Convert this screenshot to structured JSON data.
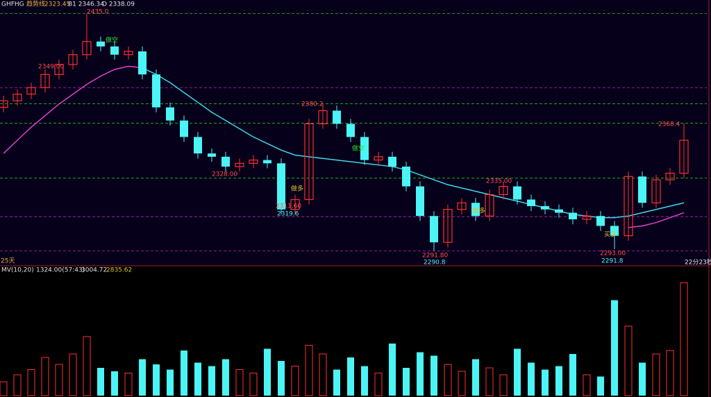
{
  "header": {
    "symbol": "GHFHG",
    "indicator": "趋势线",
    "price": "2323.45",
    "b1": "B1 2346.34",
    "d": "D 2338.09"
  },
  "annotations": {
    "high": "2435.0",
    "left_level": "2349.00",
    "peak2": "2380.2",
    "peak3": "2368.4",
    "level_mid": "2335.00",
    "level_left2": "2328.00",
    "low1": "2311.60",
    "low1b": "2319.6",
    "low2": "2291.80",
    "low2b": "2290.8",
    "low3": "2293.00",
    "low3b": "2291.8",
    "days": "25天",
    "timer": "22分23秒",
    "sig_short1": "做空",
    "sig_long1": "做多",
    "sig_short2": "做空",
    "sig_long2": "做多",
    "sig_buy": "买多"
  },
  "chart_data": {
    "type": "candlestick",
    "up_color": "#ff3030",
    "down_color": "#4cf5f5",
    "ylim": [
      2283,
      2439
    ],
    "open": [
      2378,
      2382,
      2386,
      2390,
      2398,
      2404,
      2410,
      2418,
      2415,
      2410,
      2412,
      2398,
      2378,
      2370,
      2360,
      2350,
      2348,
      2342,
      2344,
      2346,
      2344,
      2316,
      2322,
      2368,
      2376,
      2368,
      2360,
      2346,
      2348,
      2342,
      2330,
      2312,
      2296,
      2316,
      2320,
      2312,
      2325,
      2330,
      2322,
      2318,
      2316,
      2314,
      2310,
      2312,
      2306,
      2300,
      2336,
      2320,
      2334,
      2338
    ],
    "high": [
      2385,
      2389,
      2393,
      2401,
      2407,
      2413,
      2435,
      2421,
      2418,
      2415,
      2415,
      2401,
      2381,
      2373,
      2363,
      2353,
      2351,
      2347,
      2349,
      2349,
      2347,
      2325,
      2371,
      2380.2,
      2379,
      2371,
      2363,
      2351,
      2351,
      2345,
      2333,
      2315,
      2319,
      2323,
      2323,
      2328,
      2333,
      2333,
      2325,
      2321,
      2319,
      2317,
      2315,
      2315,
      2309,
      2339,
      2339,
      2337,
      2341,
      2368.4
    ],
    "low": [
      2375,
      2379,
      2383,
      2387,
      2395,
      2401,
      2407,
      2412,
      2407,
      2407,
      2395,
      2375,
      2367,
      2357,
      2347,
      2345,
      2339,
      2339,
      2341,
      2341,
      2313,
      2313,
      2319,
      2365,
      2365,
      2357,
      2343,
      2343,
      2339,
      2327,
      2309,
      2290.8,
      2293,
      2313,
      2309,
      2309,
      2322,
      2319,
      2315,
      2313,
      2311,
      2307,
      2307,
      2303,
      2291.8,
      2297,
      2317,
      2317,
      2331,
      2335
    ],
    "close": [
      2382,
      2386,
      2390,
      2398,
      2404,
      2410,
      2418,
      2415,
      2410,
      2412,
      2398,
      2378,
      2370,
      2360,
      2350,
      2348,
      2342,
      2344,
      2346,
      2344,
      2316,
      2322,
      2368,
      2376,
      2368,
      2360,
      2346,
      2348,
      2342,
      2330,
      2312,
      2296,
      2316,
      2320,
      2312,
      2325,
      2330,
      2322,
      2318,
      2316,
      2314,
      2310,
      2312,
      2306,
      2300,
      2336,
      2320,
      2334,
      2338,
      2358
    ],
    "lines": [
      {
        "color": "#40d8ec",
        "values": [
          null,
          null,
          null,
          null,
          null,
          null,
          null,
          null,
          null,
          null,
          2402,
          2398,
          2393,
          2387,
          2381,
          2375,
          2370,
          2365,
          2360,
          2356,
          2352,
          2349,
          2348,
          2347,
          2346,
          2345,
          2344,
          2343,
          2342,
          2340,
          2337,
          2334,
          2331,
          2329,
          2327,
          2325,
          2323,
          2321,
          2319,
          2317,
          2315,
          2313,
          2312,
          2311,
          2311,
          2312,
          2314,
          2316,
          2318,
          2320
        ]
      },
      {
        "color": "#e040d0",
        "values": [
          2350,
          2358,
          2366,
          2373,
          2380,
          2386,
          2392,
          2397,
          2401,
          2403,
          2402,
          null,
          null,
          null,
          null,
          null,
          null,
          null,
          null,
          null,
          null,
          null,
          null,
          null,
          null,
          null,
          null,
          null,
          null,
          null,
          null,
          null,
          null,
          null,
          null,
          null,
          null,
          null,
          null,
          null,
          null,
          null,
          null,
          null,
          null,
          2305,
          2306,
          2308,
          2311,
          2314
        ]
      }
    ],
    "levels": [
      {
        "value": 2435,
        "color": "#20c020"
      },
      {
        "value": 2380.2,
        "color": "#20c020"
      },
      {
        "value": 2368.4,
        "color": "#20c020"
      },
      {
        "value": 2335,
        "color": "#20c020"
      },
      {
        "value": 2311.6,
        "color": "#c020c0"
      },
      {
        "value": 2290.8,
        "color": "#c020c0"
      },
      {
        "value": 2390,
        "color": "#c020c0"
      }
    ],
    "volume": {
      "title": "MV(10,20)",
      "v1": "1324.00(57:43)",
      "v2": "3004.72",
      "v3": "2835.62",
      "ylim": [
        0,
        7000
      ],
      "values": [
        800,
        1200,
        1500,
        2200,
        1800,
        2400,
        3400,
        1600,
        1400,
        1300,
        2100,
        1800,
        1500,
        2600,
        1900,
        1700,
        2100,
        1500,
        1300,
        2700,
        2000,
        1700,
        2900,
        2400,
        1500,
        2200,
        1700,
        1300,
        3000,
        1600,
        2500,
        2300,
        1800,
        1400,
        2100,
        1600,
        1200,
        2700,
        1900,
        1500,
        1700,
        2400,
        1200,
        1100,
        5500,
        4000,
        1900,
        2400,
        2600,
        6500
      ]
    }
  }
}
